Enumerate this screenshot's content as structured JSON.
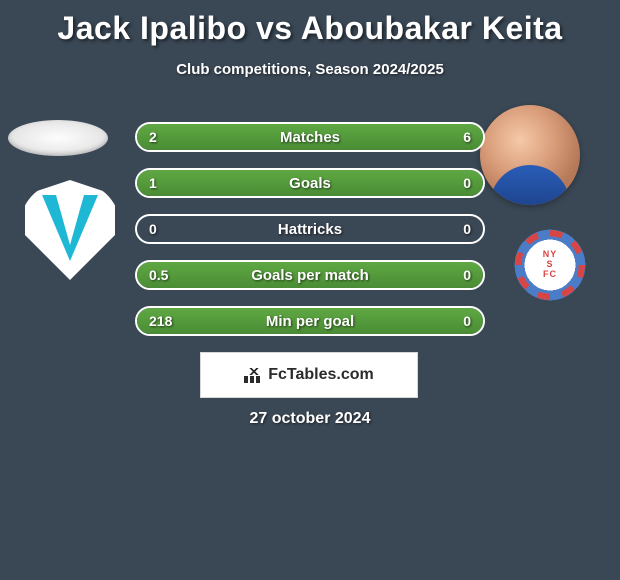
{
  "title": "Jack Ipalibo vs Aboubakar Keita",
  "subtitle": "Club competitions, Season 2024/2025",
  "date": "27 october 2024",
  "watermark": "FcTables.com",
  "background_color": "#3a4754",
  "bar_fill_color": "#5fa843",
  "bar_border_color": "#ffffff",
  "text_color": "#ffffff",
  "title_fontsize": 32,
  "subtitle_fontsize": 15,
  "label_fontsize": 15,
  "value_fontsize": 14,
  "bars": [
    {
      "label": "Matches",
      "left_val": "2",
      "right_val": "6",
      "left_pct": 25,
      "right_pct": 75
    },
    {
      "label": "Goals",
      "left_val": "1",
      "right_val": "0",
      "left_pct": 100,
      "right_pct": 0
    },
    {
      "label": "Hattricks",
      "left_val": "0",
      "right_val": "0",
      "left_pct": 0,
      "right_pct": 0
    },
    {
      "label": "Goals per match",
      "left_val": "0.5",
      "right_val": "0",
      "left_pct": 100,
      "right_pct": 0
    },
    {
      "label": "Min per goal",
      "left_val": "218",
      "right_val": "0",
      "left_pct": 100,
      "right_pct": 0
    }
  ]
}
